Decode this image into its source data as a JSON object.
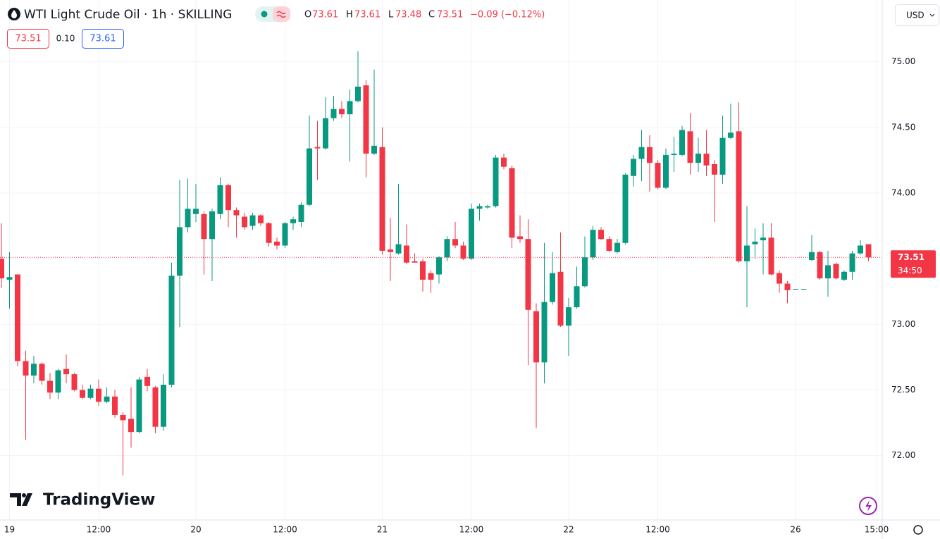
{
  "header": {
    "title": "WTI Light Crude Oil · 1h · SKILLING",
    "legend": [
      {
        "label": "O",
        "value": "73.61"
      },
      {
        "label": "H",
        "value": "73.61"
      },
      {
        "label": "L",
        "value": "73.48"
      },
      {
        "label": "C",
        "value": "73.51"
      }
    ],
    "change": "−0.09 (−0.12%)"
  },
  "trade": {
    "sell": "73.51",
    "spread": "0.10",
    "buy": "73.61"
  },
  "currency": "USD",
  "logo": "TradingView",
  "chart_data": {
    "type": "candlestick",
    "categories": [
      null,
      "19",
      null,
      null,
      null,
      null,
      null,
      null,
      null,
      null,
      null,
      null,
      "12:00",
      null,
      null,
      null,
      null,
      null,
      null,
      null,
      null,
      null,
      null,
      null,
      "20",
      null,
      null,
      null,
      null,
      null,
      null,
      null,
      null,
      null,
      null,
      "12:00",
      null,
      null,
      null,
      null,
      null,
      null,
      null,
      null,
      null,
      null,
      null,
      "21",
      null,
      null,
      null,
      null,
      null,
      null,
      null,
      null,
      null,
      null,
      "12:00",
      null,
      null,
      null,
      null,
      null,
      null,
      null,
      null,
      null,
      null,
      null,
      "22",
      null,
      null,
      null,
      null,
      null,
      null,
      null,
      null,
      null,
      null,
      "12:00",
      null,
      null,
      null,
      null,
      null,
      null,
      null,
      null,
      null,
      null,
      null,
      null,
      null,
      null,
      null,
      null,
      "26",
      null,
      null,
      null,
      null,
      null,
      null,
      null,
      null,
      null,
      "15:00"
    ],
    "open": [
      73.5,
      73.34,
      73.38,
      72.72,
      72.61,
      72.7,
      72.57,
      72.48,
      72.66,
      72.62,
      72.5,
      72.44,
      72.51,
      72.41,
      72.45,
      72.31,
      72.28,
      72.18,
      72.6,
      72.52,
      72.22,
      72.54,
      73.37,
      73.74,
      73.84,
      73.84,
      73.65,
      73.84,
      74.06,
      73.87,
      73.82,
      73.75,
      73.83,
      73.77,
      73.63,
      73.6,
      73.77,
      73.78,
      73.91,
      74.35,
      74.34,
      74.57,
      74.64,
      74.6,
      74.7,
      74.82,
      74.3,
      74.35,
      73.57,
      73.54,
      73.6,
      73.48,
      73.48,
      73.39,
      73.38,
      73.51,
      73.65,
      73.6,
      73.5,
      73.88,
      73.89,
      73.9,
      74.27,
      74.19,
      73.67,
      73.65,
      73.1,
      72.71,
      73.17,
      73.4,
      72.99,
      73.13,
      73.29,
      73.51,
      73.72,
      73.65,
      73.55,
      73.62,
      74.13,
      74.26,
      74.35,
      74.23,
      74.04,
      74.29,
      74.29,
      74.47,
      74.23,
      74.3,
      74.22,
      74.14,
      74.42,
      74.47,
      73.48,
      73.61,
      73.64,
      73.66,
      73.39,
      73.31,
      73.27,
      73.27,
      73.49,
      73.55,
      73.35,
      73.46,
      73.34,
      73.4,
      73.54,
      73.61,
      null
    ],
    "high": [
      73.77,
      73.55,
      73.38,
      72.8,
      72.76,
      72.71,
      72.63,
      72.66,
      72.77,
      72.63,
      72.54,
      72.54,
      72.58,
      72.52,
      72.5,
      72.33,
      72.52,
      72.6,
      72.66,
      72.53,
      72.62,
      73.47,
      74.1,
      74.11,
      74.07,
      73.86,
      73.88,
      74.12,
      74.07,
      73.89,
      73.85,
      73.85,
      73.84,
      73.78,
      73.66,
      73.78,
      73.82,
      73.93,
      74.59,
      74.55,
      74.73,
      74.74,
      74.7,
      74.79,
      75.08,
      74.86,
      74.94,
      74.5,
      73.81,
      74.07,
      73.76,
      73.54,
      73.5,
      73.41,
      73.52,
      73.67,
      73.78,
      73.63,
      73.92,
      73.92,
      73.91,
      74.29,
      74.3,
      74.21,
      73.83,
      73.8,
      73.16,
      73.62,
      73.55,
      73.7,
      73.2,
      73.44,
      73.67,
      73.75,
      73.74,
      73.67,
      73.65,
      74.15,
      74.29,
      74.48,
      74.44,
      74.25,
      74.34,
      74.43,
      74.51,
      74.61,
      74.42,
      74.48,
      74.25,
      74.59,
      74.68,
      74.69,
      73.9,
      73.73,
      73.77,
      73.77,
      73.41,
      73.33,
      73.27,
      73.27,
      73.68,
      73.56,
      73.56,
      73.47,
      73.41,
      73.56,
      73.64,
      73.61,
      null
    ],
    "low": [
      73.28,
      73.12,
      72.68,
      72.12,
      72.55,
      72.54,
      72.43,
      72.43,
      72.55,
      72.49,
      72.43,
      72.43,
      72.38,
      72.4,
      72.29,
      71.85,
      72.06,
      72.17,
      72.49,
      72.17,
      72.19,
      72.52,
      72.98,
      73.7,
      73.78,
      73.38,
      73.33,
      73.8,
      73.74,
      73.66,
      73.72,
      73.72,
      73.75,
      73.59,
      73.57,
      73.58,
      73.72,
      73.74,
      73.9,
      74.1,
      74.33,
      74.55,
      74.57,
      74.24,
      74.69,
      74.12,
      74.29,
      73.53,
      73.33,
      73.53,
      73.46,
      73.47,
      73.25,
      73.24,
      73.31,
      73.48,
      73.58,
      73.49,
      73.49,
      73.79,
      73.88,
      73.89,
      74.18,
      73.58,
      73.62,
      72.69,
      72.21,
      72.55,
      73.15,
      72.98,
      72.76,
      73.12,
      73.28,
      73.49,
      73.64,
      73.55,
      73.54,
      73.61,
      74.05,
      74.09,
      74.01,
      74.03,
      74.03,
      74.16,
      74.28,
      74.14,
      74.16,
      74.13,
      73.78,
      74.07,
      74.41,
      73.47,
      73.13,
      73.5,
      73.38,
      73.37,
      73.24,
      73.16,
      73.27,
      73.27,
      73.48,
      73.34,
      73.21,
      73.34,
      73.33,
      73.34,
      73.53,
      73.48,
      null
    ],
    "close": [
      73.35,
      73.36,
      72.72,
      72.61,
      72.7,
      72.57,
      72.48,
      72.65,
      72.62,
      72.5,
      72.44,
      72.51,
      72.41,
      72.45,
      72.31,
      72.27,
      72.18,
      72.58,
      72.53,
      72.22,
      72.54,
      73.37,
      73.74,
      73.88,
      73.88,
      73.65,
      73.86,
      74.06,
      73.87,
      73.83,
      73.74,
      73.83,
      73.77,
      73.62,
      73.6,
      73.77,
      73.8,
      73.91,
      74.34,
      74.34,
      74.57,
      74.64,
      74.6,
      74.7,
      74.81,
      74.3,
      74.36,
      73.56,
      73.55,
      73.61,
      73.47,
      73.47,
      73.34,
      73.34,
      73.51,
      73.65,
      73.6,
      73.5,
      73.88,
      73.9,
      73.9,
      74.27,
      74.2,
      73.66,
      73.65,
      73.11,
      72.71,
      73.17,
      73.39,
      72.99,
      73.13,
      73.29,
      73.51,
      73.72,
      73.65,
      73.56,
      73.62,
      74.14,
      74.26,
      74.35,
      74.23,
      74.04,
      74.29,
      74.3,
      74.48,
      74.23,
      74.3,
      74.21,
      74.14,
      74.42,
      74.46,
      73.48,
      73.6,
      73.63,
      73.66,
      73.38,
      73.31,
      73.26,
      73.27,
      73.27,
      73.55,
      73.35,
      73.45,
      73.35,
      73.4,
      73.54,
      73.6,
      73.51,
      null
    ],
    "up_color": "#089981",
    "down_color": "#f23645",
    "ylim": [
      71.51,
      75.47
    ],
    "yticks": [
      {
        "value": 72,
        "label": "72.00"
      },
      {
        "value": 72.5,
        "label": "72.50"
      },
      {
        "value": 73,
        "label": "73.00"
      },
      {
        "value": 73.5,
        "label": "73.50"
      },
      {
        "value": 74,
        "label": "74.00"
      },
      {
        "value": 74.5,
        "label": "74.50"
      },
      {
        "value": 75,
        "label": "75.00"
      }
    ],
    "grid": true,
    "last_price": {
      "value": 73.51,
      "countdown": "34:50"
    }
  }
}
